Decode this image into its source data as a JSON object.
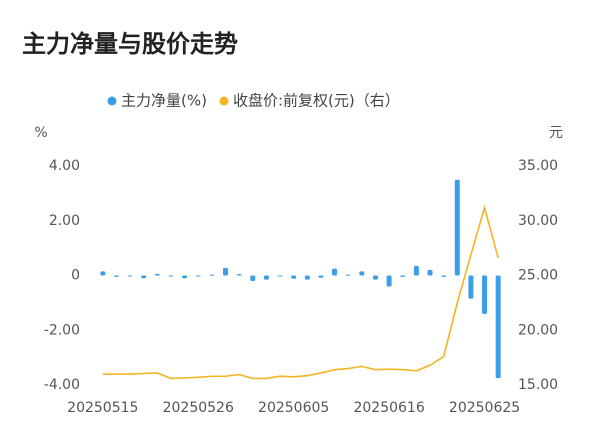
{
  "chart_data": {
    "type": "bar-line",
    "title": "主力净量与股价走势",
    "y_axis_label": "%",
    "y2_axis_label": "元",
    "categories": [
      "20250515",
      null,
      null,
      null,
      null,
      null,
      null,
      "20250526",
      null,
      null,
      null,
      null,
      null,
      null,
      "20250605",
      null,
      null,
      null,
      null,
      null,
      null,
      "20250616",
      null,
      null,
      null,
      null,
      null,
      null,
      "20250625",
      null
    ],
    "series": [
      {
        "name": "主力净量(%)",
        "type": "bar",
        "color": "#3a9fe6",
        "values": [
          0.15,
          -0.05,
          -0.03,
          -0.1,
          0.06,
          -0.02,
          -0.1,
          -0.03,
          0.03,
          0.28,
          0.05,
          -0.2,
          -0.15,
          -0.03,
          -0.12,
          -0.15,
          -0.08,
          0.25,
          0.03,
          0.15,
          -0.15,
          -0.4,
          -0.05,
          0.35,
          0.2,
          -0.05,
          3.5,
          -0.85,
          -1.4,
          -3.75
        ]
      },
      {
        "name": "收盘价:前复权(元)（右）",
        "type": "line",
        "axis": "y2",
        "color": "#f5b422",
        "values": [
          16.0,
          16.0,
          16.0,
          16.05,
          16.1,
          15.6,
          15.65,
          15.7,
          15.8,
          15.8,
          15.95,
          15.6,
          15.6,
          15.8,
          15.75,
          15.85,
          16.1,
          16.4,
          16.5,
          16.7,
          16.4,
          16.45,
          16.4,
          16.3,
          16.8,
          17.6,
          22.5,
          26.9,
          31.2,
          26.6
        ]
      }
    ],
    "ylim": [
      -4,
      4
    ],
    "yticks": [
      {
        "value": 4,
        "label": "4.00"
      },
      {
        "value": 2,
        "label": "2.00"
      },
      0,
      {
        "value": -2,
        "label": "-2.00"
      },
      {
        "value": -4,
        "label": "-4.00"
      }
    ],
    "y2lim": [
      15,
      35
    ],
    "y2ticks": [
      {
        "value": 35,
        "label": "35.00"
      },
      {
        "value": 30,
        "label": "30.00"
      },
      {
        "value": 25,
        "label": "25.00"
      },
      {
        "value": 20,
        "label": "20.00"
      },
      {
        "value": 15,
        "label": "15.00"
      }
    ],
    "legend": "top"
  }
}
